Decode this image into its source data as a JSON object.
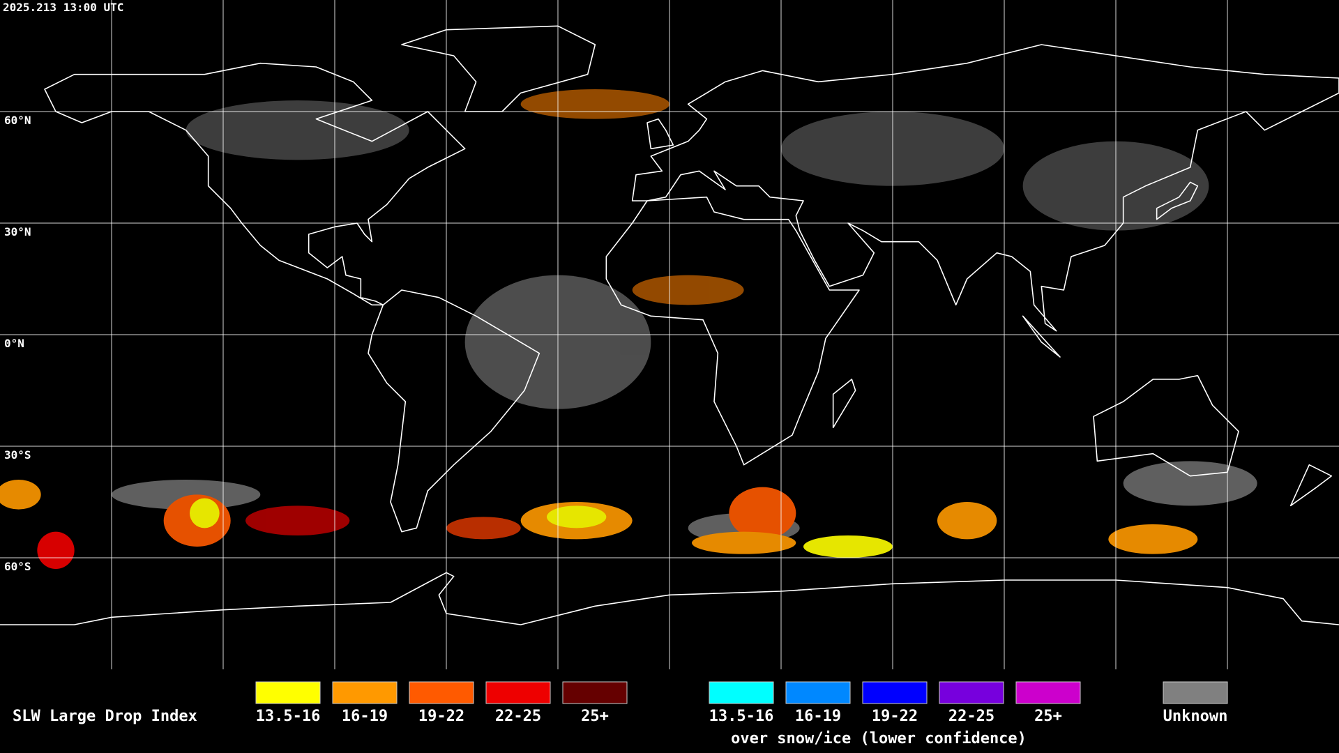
{
  "header": {
    "timestamp": "2025.213 13:00 UTC"
  },
  "map": {
    "latitude_labels": [
      "60°N",
      "30°N",
      "0°N",
      "30°S",
      "60°S"
    ]
  },
  "legend": {
    "title": "SLW Large Drop Index",
    "items": [
      {
        "label": "13.5-16",
        "color": "#ffff00"
      },
      {
        "label": "16-19",
        "color": "#ff9900"
      },
      {
        "label": "19-22",
        "color": "#ff5a00"
      },
      {
        "label": "22-25",
        "color": "#ee0000"
      },
      {
        "label": "25+",
        "color": "#650000"
      }
    ],
    "snow_items": [
      {
        "label": "13.5-16",
        "color": "#00ffff"
      },
      {
        "label": "16-19",
        "color": "#0088ff"
      },
      {
        "label": "19-22",
        "color": "#0000ff"
      },
      {
        "label": "22-25",
        "color": "#7700dd"
      },
      {
        "label": "25+",
        "color": "#cc00cc"
      }
    ],
    "snow_caption": "over snow/ice (lower confidence)",
    "unknown": {
      "label": "Unknown",
      "color": "#808080"
    }
  }
}
